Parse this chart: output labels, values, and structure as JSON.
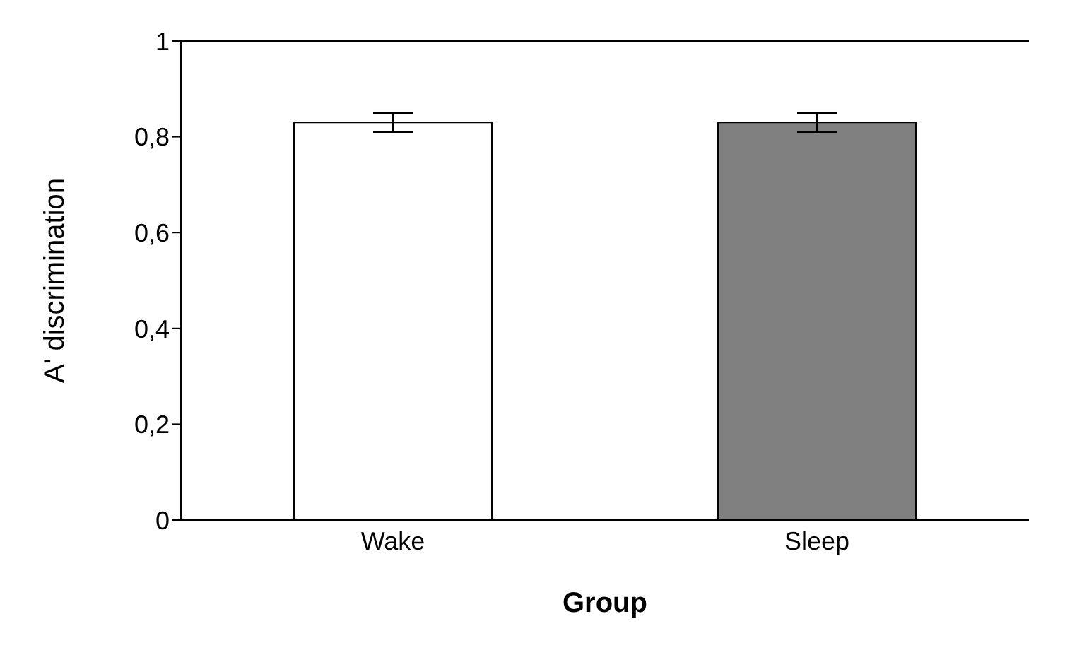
{
  "chart_data": {
    "type": "bar",
    "xlabel": "Group",
    "ylabel": "A' discrimination",
    "categories": [
      "Wake",
      "Sleep"
    ],
    "values": [
      0.83,
      0.83
    ],
    "colors": [
      "#ffffff",
      "#808080"
    ],
    "errors": [
      0.02,
      0.02
    ],
    "ylim": [
      0,
      1
    ],
    "yticks": [
      {
        "value": 0,
        "label": "0"
      },
      {
        "value": 0.2,
        "label": "0,2"
      },
      {
        "value": 0.4,
        "label": "0,4"
      },
      {
        "value": 0.6,
        "label": "0,6"
      },
      {
        "value": 0.8,
        "label": "0,8"
      },
      {
        "value": 1,
        "label": "1"
      }
    ],
    "grid": false,
    "legend": false
  }
}
